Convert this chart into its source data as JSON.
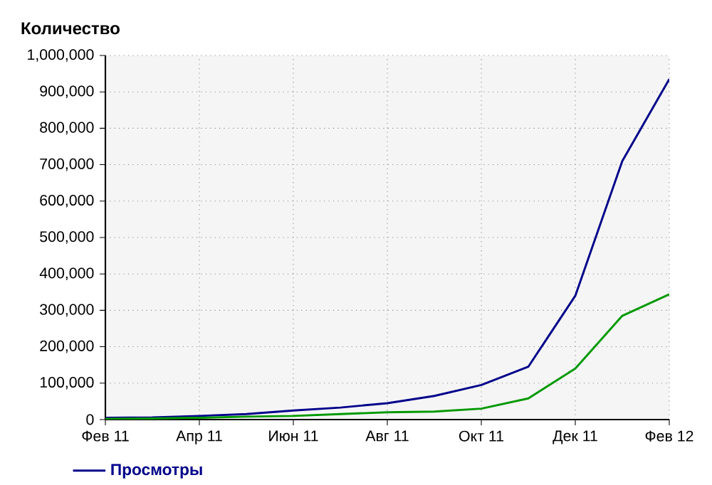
{
  "chart_data": {
    "type": "line",
    "ylabel": "Количество",
    "categories": [
      "Фев 11",
      null,
      "Апр 11",
      null,
      "Июн 11",
      null,
      "Авг 11",
      null,
      "Окт 11",
      null,
      "Дек 11",
      null,
      "Фев 12"
    ],
    "series": [
      {
        "name": "Просмотры",
        "color": "#00008b",
        "values": [
          5000,
          6000,
          10000,
          15000,
          25000,
          33000,
          45000,
          65000,
          95000,
          145000,
          340000,
          710000,
          935000
        ]
      },
      {
        "color": "#009900",
        "values": [
          2000,
          3000,
          5000,
          8000,
          10000,
          15000,
          20000,
          22000,
          30000,
          58000,
          140000,
          285000,
          344000
        ]
      }
    ],
    "ylim": [
      0,
      1000000
    ],
    "yticks": [
      {
        "value": 0,
        "label": "0"
      },
      {
        "value": 100000,
        "label": "100,000"
      },
      {
        "value": 200000,
        "label": "200,000"
      },
      {
        "value": 300000,
        "label": "300,000"
      },
      {
        "value": 400000,
        "label": "400,000"
      },
      {
        "value": 500000,
        "label": "500,000"
      },
      {
        "value": 600000,
        "label": "600,000"
      },
      {
        "value": 700000,
        "label": "700,000"
      },
      {
        "value": 800000,
        "label": "800,000"
      },
      {
        "value": 900000,
        "label": "900,000"
      },
      {
        "value": 1000000,
        "label": "1,000,000"
      }
    ],
    "grid": true,
    "legend": "bottom",
    "marker": "none",
    "line_style": "solid"
  }
}
